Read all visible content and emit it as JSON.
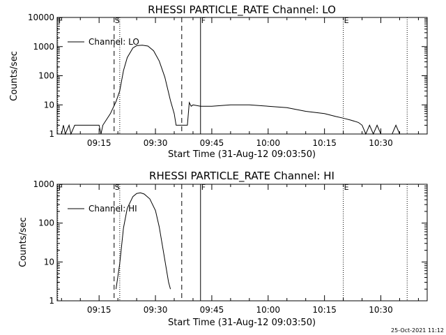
{
  "footer": {
    "timestamp": "25-Oct-2021 11:12"
  },
  "chart_data": [
    {
      "type": "line",
      "title": "RHESSI PARTICLE_RATE Channel: LO",
      "xlabel": "Start Time (31-Aug-12 09:03:50)",
      "ylabel": "Counts/sec",
      "y_scale": "log",
      "ylim": [
        1,
        10000
      ],
      "xlim": [
        "09:03:50",
        "10:42:20"
      ],
      "x_ticks": [
        "09:15",
        "09:30",
        "09:45",
        "10:00",
        "10:15",
        "10:30"
      ],
      "y_ticks": [
        "1",
        "10",
        "100",
        "1000",
        "10000"
      ],
      "legend": {
        "position": "top-left",
        "entries": [
          "Channel: LO"
        ]
      },
      "markers": [
        {
          "label": "F",
          "time": "09:04",
          "style": "dotted"
        },
        {
          "label": "S",
          "time": "09:19",
          "style": "dashed"
        },
        {
          "label": "",
          "time": "09:20.5",
          "style": "dotted"
        },
        {
          "label": "",
          "time": "09:37",
          "style": "dashed"
        },
        {
          "label": "F",
          "time": "09:42",
          "style": "solid"
        },
        {
          "label": "E",
          "time": "10:20",
          "style": "dotted"
        },
        {
          "label": "",
          "time": "10:37",
          "style": "dotted"
        }
      ],
      "series": [
        {
          "name": "Channel: LO",
          "points": [
            [
              "09:04",
              1
            ],
            [
              "09:05",
              1
            ],
            [
              "09:05.5",
              2
            ],
            [
              "09:06",
              1
            ],
            [
              "09:07",
              2
            ],
            [
              "09:07.5",
              1
            ],
            [
              "09:08.5",
              2
            ],
            [
              "09:10",
              2
            ],
            [
              "09:12",
              2
            ],
            [
              "09:14",
              2
            ],
            [
              "09:15",
              2
            ],
            [
              "09:15.5",
              1
            ],
            [
              "09:16",
              2
            ],
            [
              "09:18",
              5
            ],
            [
              "09:19.5",
              13
            ],
            [
              "09:20.5",
              30
            ],
            [
              "09:21.5",
              150
            ],
            [
              "09:22.5",
              420
            ],
            [
              "09:24",
              900
            ],
            [
              "09:25",
              1080
            ],
            [
              "09:26.5",
              1120
            ],
            [
              "09:28",
              1040
            ],
            [
              "09:29.5",
              720
            ],
            [
              "09:31",
              320
            ],
            [
              "09:32.5",
              90
            ],
            [
              "09:34",
              14
            ],
            [
              "09:35",
              5
            ],
            [
              "09:35.5",
              2
            ],
            [
              "09:38.5",
              2
            ],
            [
              "09:39",
              12
            ],
            [
              "09:39.5",
              9
            ],
            [
              "09:40",
              10
            ],
            [
              "09:42",
              9
            ],
            [
              "09:45",
              9
            ],
            [
              "09:50",
              10
            ],
            [
              "09:55",
              10
            ],
            [
              "10:00",
              9
            ],
            [
              "10:05",
              8
            ],
            [
              "10:10",
              6
            ],
            [
              "10:15",
              5
            ],
            [
              "10:18",
              4
            ],
            [
              "10:20",
              3.5
            ],
            [
              "10:22",
              3
            ],
            [
              "10:24",
              2.5
            ],
            [
              "10:25",
              2
            ],
            [
              "10:26",
              1
            ],
            [
              "10:27",
              2
            ],
            [
              "10:28",
              1
            ],
            [
              "10:29",
              2
            ],
            [
              "10:30",
              1
            ],
            [
              "10:33",
              1
            ],
            [
              "10:34",
              2
            ],
            [
              "10:35",
              1
            ]
          ]
        }
      ]
    },
    {
      "type": "line",
      "title": "RHESSI PARTICLE_RATE Channel: HI",
      "xlabel": "Start Time (31-Aug-12 09:03:50)",
      "ylabel": "Counts/sec",
      "y_scale": "log",
      "ylim": [
        1,
        1000
      ],
      "xlim": [
        "09:03:50",
        "10:42:20"
      ],
      "x_ticks": [
        "09:15",
        "09:30",
        "09:45",
        "10:00",
        "10:15",
        "10:30"
      ],
      "y_ticks": [
        "1",
        "10",
        "100",
        "1000"
      ],
      "legend": {
        "position": "top-left",
        "entries": [
          "Channel: HI"
        ]
      },
      "markers": [
        {
          "label": "F",
          "time": "09:04",
          "style": "dotted"
        },
        {
          "label": "S",
          "time": "09:19",
          "style": "dashed"
        },
        {
          "label": "",
          "time": "09:20.5",
          "style": "dotted"
        },
        {
          "label": "",
          "time": "09:37",
          "style": "dashed"
        },
        {
          "label": "F",
          "time": "09:42",
          "style": "solid"
        },
        {
          "label": "E",
          "time": "10:20",
          "style": "dotted"
        },
        {
          "label": "",
          "time": "10:37",
          "style": "dotted"
        }
      ],
      "series": [
        {
          "name": "Channel: HI",
          "points": [
            [
              "09:19.5",
              2
            ],
            [
              "09:20.5",
              9
            ],
            [
              "09:21.5",
              75
            ],
            [
              "09:22.5",
              240
            ],
            [
              "09:24",
              480
            ],
            [
              "09:25",
              580
            ],
            [
              "09:26",
              600
            ],
            [
              "09:27",
              560
            ],
            [
              "09:28.5",
              420
            ],
            [
              "09:30",
              210
            ],
            [
              "09:31",
              80
            ],
            [
              "09:32",
              22
            ],
            [
              "09:33.5",
              3
            ],
            [
              "09:34",
              2
            ]
          ]
        }
      ]
    }
  ]
}
